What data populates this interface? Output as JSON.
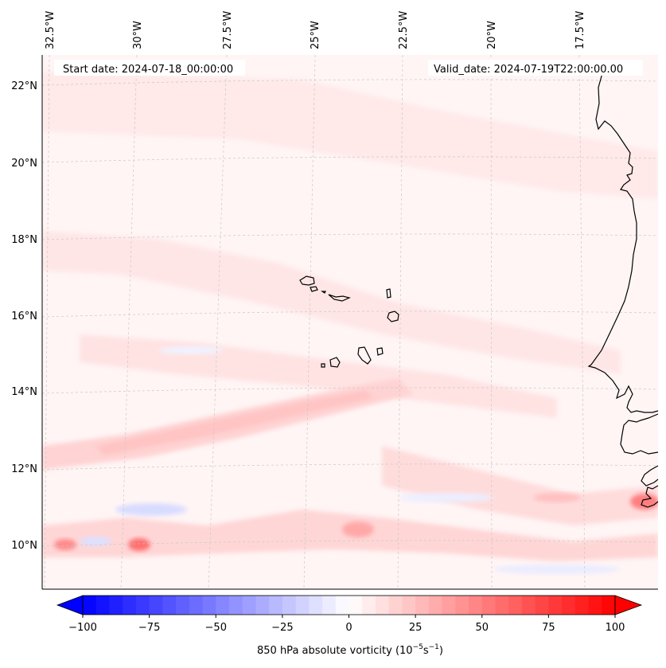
{
  "map": {
    "start_label": "Start date: 2024-07-18_00:00:00",
    "valid_label": "Valid_date: 2024-07-19T22:00:00.00",
    "lon_labels": [
      "32.5°W",
      "30°W",
      "27.5°W",
      "25°W",
      "22.5°W",
      "20°W",
      "17.5°W"
    ],
    "lat_labels": [
      "22°N",
      "20°N",
      "18°N",
      "16°N",
      "14°N",
      "12°N",
      "10°N"
    ],
    "colorbar": {
      "min": -100,
      "max": 100,
      "ticks": [
        "−100",
        "−75",
        "−50",
        "−25",
        "0",
        "25",
        "50",
        "75",
        "100"
      ],
      "label_main": "850 hPa absolute vorticity (10",
      "label_exp1": "−5",
      "label_mid": "s",
      "label_exp2": "−1",
      "label_end": ")",
      "colormap": "bwr",
      "extend": "both"
    },
    "colors": {
      "coastline": "#000000",
      "gridline": "#c8c8c8",
      "background_field": "#fff5f5",
      "weak_positive": "#ffdede",
      "strong_positive": "#ff5a5a",
      "weak_negative": "#eef0ff"
    }
  }
}
